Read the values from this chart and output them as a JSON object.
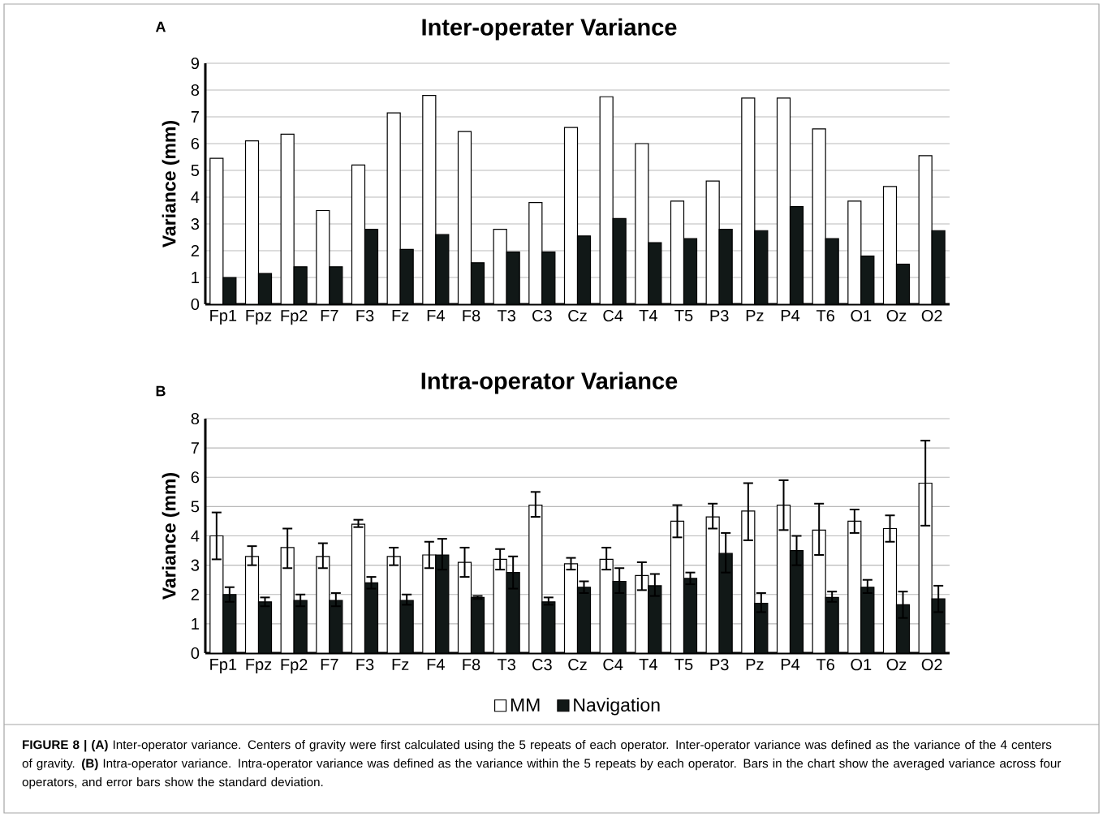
{
  "chart_data": [
    {
      "type": "bar",
      "title": "Inter-operater Variance",
      "ylabel": "Variance (mm)",
      "annotations": [
        "A"
      ],
      "categories": [
        "Fp1",
        "Fpz",
        "Fp2",
        "F7",
        "F3",
        "Fz",
        "F4",
        "F8",
        "T3",
        "C3",
        "Cz",
        "C4",
        "T4",
        "T5",
        "P3",
        "Pz",
        "P4",
        "T6",
        "O1",
        "Oz",
        "O2"
      ],
      "series": [
        {
          "color": "#ffffff",
          "values": [
            5.45,
            6.1,
            6.35,
            3.5,
            5.2,
            7.15,
            7.8,
            6.45,
            2.8,
            3.8,
            6.6,
            7.75,
            6.0,
            3.85,
            4.6,
            7.7,
            7.7,
            6.55,
            3.85,
            4.4,
            5.55
          ]
        },
        {
          "color": "#111817",
          "values": [
            1.0,
            1.15,
            1.4,
            1.4,
            2.8,
            2.05,
            2.6,
            1.55,
            1.95,
            1.95,
            2.55,
            3.2,
            2.3,
            2.45,
            2.8,
            2.75,
            3.65,
            2.45,
            1.8,
            1.5,
            2.75
          ]
        }
      ],
      "ylim": [
        0,
        9
      ],
      "yticks": [
        0,
        1,
        2,
        3,
        4,
        5,
        6,
        7,
        8,
        9
      ],
      "grid": "y"
    },
    {
      "type": "bar",
      "title": "Intra-operator Variance",
      "ylabel": "Variance (mm)",
      "annotations": [
        "B",
        "**FIGURE 8 | (A)** Inter-operator variance. Centers of gravity were first calculated using the 5 repeats of each operator. Inter-operator variance was defined as the variance of the 4 centers of gravity. **(B)** Intra-operator variance. Intra-operator variance was defined as the variance within the 5 repeats by each operator. Bars in the chart show the averaged variance across four operators, and error bars show the standard deviation."
      ],
      "categories": [
        "Fp1",
        "Fpz",
        "Fp2",
        "F7",
        "F3",
        "Fz",
        "F4",
        "F8",
        "T3",
        "C3",
        "Cz",
        "C4",
        "T4",
        "T5",
        "P3",
        "Pz",
        "P4",
        "T6",
        "O1",
        "Oz",
        "O2"
      ],
      "series": [
        {
          "name": "MM",
          "color": "#ffffff",
          "values": [
            4.0,
            3.3,
            3.6,
            3.3,
            4.4,
            3.3,
            3.35,
            3.1,
            3.2,
            5.05,
            3.05,
            3.2,
            2.65,
            4.5,
            4.65,
            4.85,
            5.05,
            4.2,
            4.5,
            4.25,
            5.8
          ],
          "errors": [
            [
              3.2,
              4.8
            ],
            [
              3.0,
              3.65
            ],
            [
              2.9,
              4.25
            ],
            [
              2.9,
              3.75
            ],
            [
              4.3,
              4.55
            ],
            [
              3.0,
              3.6
            ],
            [
              2.9,
              3.8
            ],
            [
              2.6,
              3.6
            ],
            [
              2.85,
              3.55
            ],
            [
              4.65,
              5.5
            ],
            [
              2.85,
              3.25
            ],
            [
              2.85,
              3.6
            ],
            [
              2.15,
              3.1
            ],
            [
              3.95,
              5.05
            ],
            [
              4.25,
              5.1
            ],
            [
              3.85,
              5.8
            ],
            [
              4.2,
              5.9
            ],
            [
              3.35,
              5.1
            ],
            [
              4.1,
              4.9
            ],
            [
              3.8,
              4.7
            ],
            [
              4.35,
              7.25
            ]
          ]
        },
        {
          "name": "Navigation",
          "color": "#111817",
          "values": [
            2.0,
            1.75,
            1.8,
            1.8,
            2.4,
            1.8,
            3.35,
            1.9,
            2.75,
            1.75,
            2.25,
            2.45,
            2.3,
            2.55,
            3.4,
            1.7,
            3.5,
            1.9,
            2.25,
            1.65,
            1.85
          ],
          "errors": [
            [
              1.75,
              2.25
            ],
            [
              1.6,
              1.9
            ],
            [
              1.6,
              2.0
            ],
            [
              1.6,
              2.05
            ],
            [
              2.2,
              2.6
            ],
            [
              1.65,
              2.0
            ],
            [
              2.85,
              3.9
            ],
            [
              1.85,
              1.95
            ],
            [
              2.2,
              3.3
            ],
            [
              1.65,
              1.9
            ],
            [
              2.05,
              2.45
            ],
            [
              2.05,
              2.9
            ],
            [
              1.95,
              2.7
            ],
            [
              2.35,
              2.75
            ],
            [
              2.75,
              4.1
            ],
            [
              1.4,
              2.05
            ],
            [
              3.0,
              4.0
            ],
            [
              1.75,
              2.1
            ],
            [
              2.05,
              2.5
            ],
            [
              1.2,
              2.1
            ],
            [
              1.4,
              2.3
            ]
          ]
        }
      ],
      "ylim": [
        0,
        8
      ],
      "yticks": [
        0,
        1,
        2,
        3,
        4,
        5,
        6,
        7,
        8
      ],
      "grid": "y",
      "legend": "bottom"
    }
  ]
}
